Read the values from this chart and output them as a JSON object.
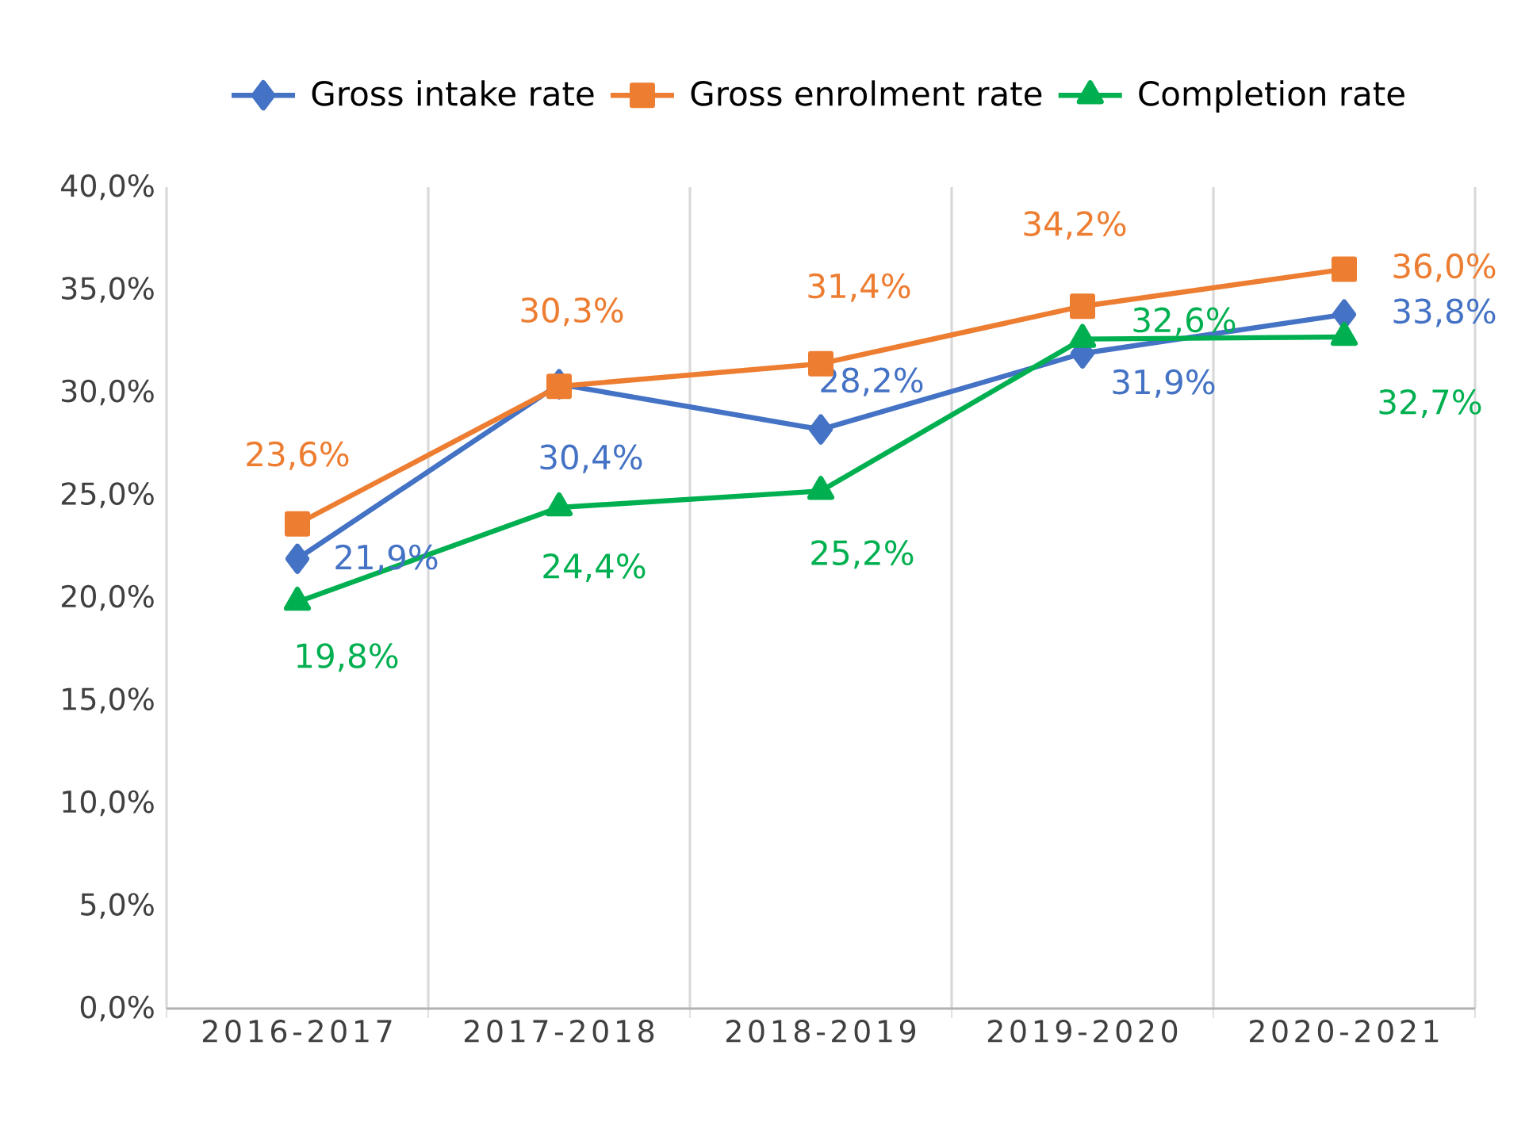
{
  "chart_data": {
    "type": "line",
    "categories": [
      "2016-2017",
      "2017-2018",
      "2018-2019",
      "2019-2020",
      "2020-2021"
    ],
    "series": [
      {
        "name": "Gross intake rate",
        "color": "#4472c4",
        "marker": "diamond",
        "values": [
          21.9,
          30.4,
          28.2,
          31.9,
          33.8
        ],
        "value_labels": [
          "21,9%",
          "30,4%",
          "28,2%",
          "31,9%",
          "33,8%"
        ]
      },
      {
        "name": "Gross enrolment rate",
        "color": "#ed7d31",
        "marker": "square",
        "values": [
          23.6,
          30.3,
          31.4,
          34.2,
          36.0
        ],
        "value_labels": [
          "23,6%",
          "30,3%",
          "31,4%",
          "34,2%",
          "36,0%"
        ]
      },
      {
        "name": "Completion rate",
        "color": "#00b050",
        "marker": "triangle",
        "values": [
          19.8,
          24.4,
          25.2,
          32.6,
          32.7
        ],
        "value_labels": [
          "19,8%",
          "24,4%",
          "25,2%",
          "32,6%",
          "32,7%"
        ]
      }
    ],
    "ylim": [
      0,
      40
    ],
    "yticks": [
      {
        "value": 0,
        "label": "0,0%"
      },
      {
        "value": 5,
        "label": "5,0%"
      },
      {
        "value": 10,
        "label": "10,0%"
      },
      {
        "value": 15,
        "label": "15,0%"
      },
      {
        "value": 20,
        "label": "20,0%"
      },
      {
        "value": 25,
        "label": "25,0%"
      },
      {
        "value": 30,
        "label": "30,0%"
      },
      {
        "value": 35,
        "label": "35,0%"
      },
      {
        "value": 40,
        "label": "40,0%"
      }
    ],
    "grid": "x",
    "legend": "top",
    "line_style": "solid"
  }
}
